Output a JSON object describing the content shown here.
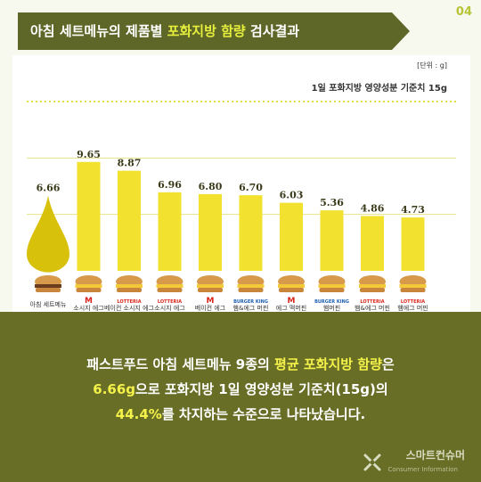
{
  "header": {
    "page_number": "04",
    "title_part1": "아침 세트메뉴의 제품별 ",
    "title_highlight": "포화지방 함량",
    "title_part2": " 검사결과"
  },
  "chart": {
    "unit_label": "[단위 : g]",
    "standard_label": "1일 포화지방 영양성분 기준치 15g"
  },
  "chart_data": {
    "type": "bar",
    "categories": [
      "아침 세트메뉴 평균",
      "소시지 에그 맥머핀 세트",
      "베이컨 소시지 에그 머핀 세트",
      "소시지 에그 머핀 세트",
      "베이컨 에그 맥머핀 세트",
      "햄&에그 머핀 세트",
      "에그 맥머핀 세트",
      "햄머핀 세트",
      "햄&에그 머핀 세트",
      "햄에그 머핀 세트"
    ],
    "values": [
      6.66,
      9.65,
      8.87,
      6.96,
      6.8,
      6.7,
      6.03,
      5.36,
      4.86,
      4.73
    ],
    "value_labels": [
      "6.66",
      "9.65",
      "8.87",
      "6.96",
      "6.80",
      "6.70",
      "6.03",
      "5.36",
      "4.86",
      "4.73"
    ],
    "brands": [
      "",
      "McDonald's",
      "LOTTERIA",
      "LOTTERIA",
      "McDonald's",
      "BURGER KING",
      "McDonald's",
      "BURGER KING",
      "LOTTERIA",
      "LOTTERIA"
    ],
    "ylim": [
      0,
      15
    ],
    "grid": true
  },
  "summary": {
    "line1_a": "패스트푸드 아침 세트메뉴 9종의 ",
    "line1_b": "평균 포화지방 함량",
    "line1_c": "은",
    "line2_a": "6.66g",
    "line2_b": "으로 포화지방 1일 영양성분 기준치(15g)의",
    "line3_a": "44.4%",
    "line3_b": "를 차지하는 수준으로 나타났습니다."
  },
  "brand": {
    "name": "스마트컨슈머",
    "sub": "Consumer Information"
  },
  "colors": {
    "bar": "#f2e12e",
    "drop": "#d8c10a",
    "banner": "#5e6728",
    "bottom": "#686e26",
    "gridline": "#d8d400"
  }
}
